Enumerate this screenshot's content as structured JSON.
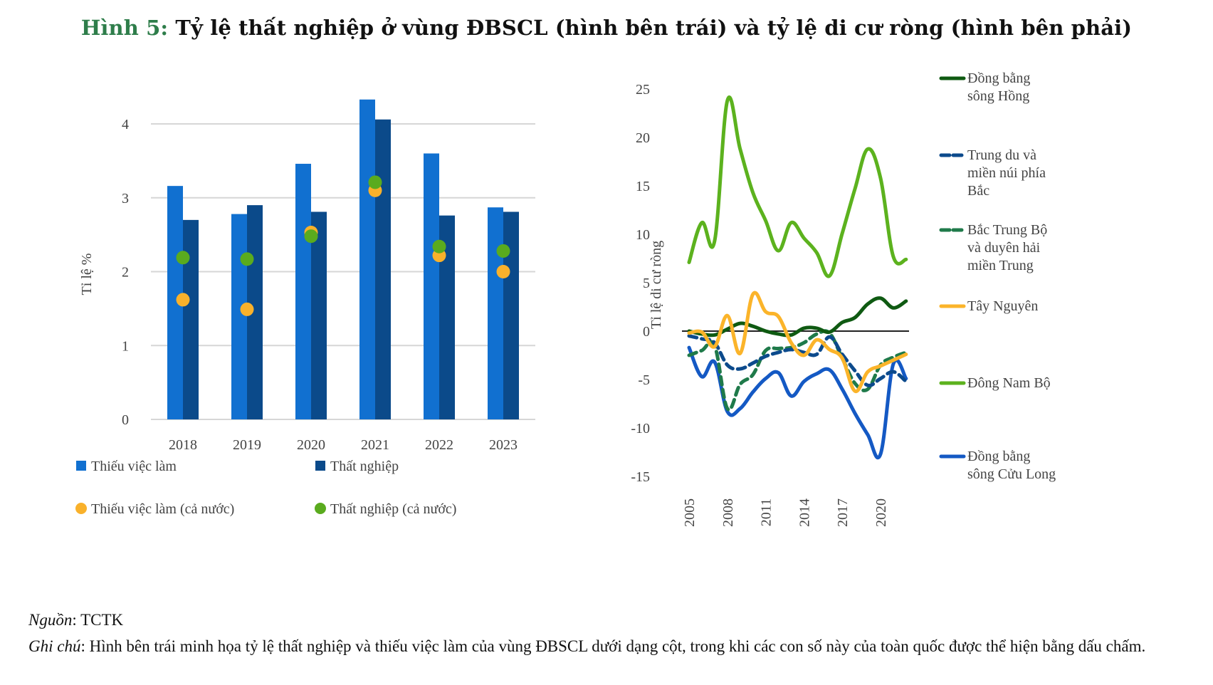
{
  "title": {
    "figure_label": "Hình 5:",
    "text": " Tỷ lệ thất nghiệp ở vùng ĐBSCL (hình bên trái) và tỷ lệ di cư ròng (hình bên phải)"
  },
  "colors": {
    "title_label": "#2e7d4a",
    "thieu_viec_lam": "#1170d0",
    "that_nghiep": "#0b4a8a",
    "thieu_viec_lam_ca_nuoc": "#f9b12b",
    "that_nghiep_ca_nuoc": "#5aab1e",
    "dbsh": "#0f5a12",
    "trung_du": "#0c4a8c",
    "bac_trung_bo": "#1f7a4a",
    "tay_nguyen": "#fbb42a",
    "dong_nam_bo": "#5cb21e",
    "dbscl": "#1459c4"
  },
  "chart_data": [
    {
      "type": "bar",
      "title": "",
      "xlabel": "",
      "ylabel": "Tỉ lệ %",
      "ylim": [
        0,
        4.4
      ],
      "yticks": [
        0,
        1,
        2,
        3,
        4
      ],
      "grid": true,
      "legend_position": "bottom",
      "categories": [
        "2018",
        "2019",
        "2020",
        "2021",
        "2022",
        "2023"
      ],
      "series": [
        {
          "name": "Thiếu việc làm",
          "kind": "bar",
          "color": "#1170d0",
          "values": [
            3.16,
            2.78,
            3.46,
            4.33,
            3.6,
            2.87
          ]
        },
        {
          "name": "Thất nghiệp",
          "kind": "bar",
          "color": "#0b4a8a",
          "values": [
            2.7,
            2.9,
            2.81,
            4.06,
            2.76,
            2.81
          ]
        },
        {
          "name": "Thiếu việc làm (cả nước)",
          "kind": "dot",
          "color": "#f9b12b",
          "values": [
            1.62,
            1.49,
            2.53,
            3.1,
            2.22,
            2.0
          ]
        },
        {
          "name": "Thất nghiệp (cả nước)",
          "kind": "dot",
          "color": "#5aab1e",
          "values": [
            2.19,
            2.17,
            2.48,
            3.21,
            2.34,
            2.28
          ]
        }
      ]
    },
    {
      "type": "line",
      "title": "",
      "xlabel": "",
      "ylabel": "Tỉ lệ di cư ròng",
      "ylim": [
        -15,
        25
      ],
      "yticks": [
        -15,
        -10,
        -5,
        0,
        5,
        10,
        15,
        20,
        25
      ],
      "xticks": [
        "2005",
        "2008",
        "2011",
        "2014",
        "2017",
        "2020"
      ],
      "x": [
        2005,
        2006,
        2007,
        2008,
        2009,
        2010,
        2011,
        2012,
        2013,
        2014,
        2015,
        2016,
        2017,
        2018,
        2019,
        2020,
        2021,
        2022
      ],
      "grid": false,
      "zero_line": true,
      "legend_position": "right",
      "series": [
        {
          "name": "Đồng bằng sông Hồng",
          "legend_lines": [
            "Đồng bằng",
            "sông Hồng"
          ],
          "color": "#0f5a12",
          "dashed": false,
          "values": [
            0,
            -0.3,
            -0.4,
            0.2,
            0.8,
            0.5,
            0,
            -0.3,
            -0.4,
            0.3,
            0.3,
            -0.1,
            0.9,
            1.4,
            2.8,
            3.4,
            2.4,
            3.1
          ]
        },
        {
          "name": "Trung du và miền núi phía Bắc",
          "legend_lines": [
            "Trung du và",
            "miền núi phía",
            "Bắc"
          ],
          "color": "#0c4a8c",
          "dashed": true,
          "values": [
            -0.5,
            -0.8,
            -1.2,
            -3.5,
            -3.9,
            -3.3,
            -2.6,
            -2.2,
            -1.9,
            -2.2,
            -2.4,
            -0.6,
            -2.4,
            -4.1,
            -5.6,
            -4.9,
            -4.2,
            -5.2
          ]
        },
        {
          "name": "Bắc Trung Bộ và duyên hải miền Trung",
          "legend_lines": [
            "Bắc Trung Bộ",
            "và duyên hải",
            "miền Trung"
          ],
          "color": "#1f7a4a",
          "dashed": true,
          "values": [
            -2.5,
            -2.0,
            -1.5,
            -8.0,
            -5.5,
            -4.5,
            -2.0,
            -1.8,
            -1.7,
            -1.2,
            -0.3,
            -0.2,
            -2.8,
            -5.4,
            -6.0,
            -3.5,
            -2.7,
            -2.2
          ]
        },
        {
          "name": "Tây Nguyên",
          "legend_lines": [
            "Tây Nguyên"
          ],
          "color": "#fbb42a",
          "dashed": false,
          "values": [
            -0.2,
            -0.1,
            -1.6,
            1.6,
            -2.3,
            3.8,
            2.0,
            1.5,
            -1.2,
            -2.5,
            -0.9,
            -1.9,
            -2.8,
            -6.2,
            -4.2,
            -3.6,
            -3.0,
            -2.4
          ]
        },
        {
          "name": "Đông Nam Bộ",
          "legend_lines": [
            "Đông Nam Bộ"
          ],
          "color": "#5cb21e",
          "dashed": false,
          "values": [
            7.1,
            11.2,
            9.3,
            23.8,
            18.8,
            14.3,
            11.4,
            8.3,
            11.2,
            9.6,
            8.1,
            5.7,
            10.1,
            14.7,
            18.8,
            15.8,
            7.7,
            7.4
          ]
        },
        {
          "name": "Đồng bằng sông Cửu Long",
          "legend_lines": [
            "Đồng bằng",
            "sông Cửu Long"
          ],
          "color": "#1459c4",
          "dashed": false,
          "values": [
            -1.7,
            -4.7,
            -3.2,
            -8.3,
            -8.0,
            -6.3,
            -4.9,
            -4.3,
            -6.7,
            -5.2,
            -4.4,
            -4.0,
            -6.0,
            -8.5,
            -10.7,
            -12.7,
            -3.4,
            -4.9
          ]
        }
      ]
    }
  ],
  "notes": {
    "source_label": "Nguồn",
    "source_text": ": TCTK",
    "note_label": "Ghi chú",
    "note_text": ": Hình bên trái minh họa tỷ lệ thất nghiệp và thiếu việc làm của vùng ĐBSCL dưới dạng cột, trong khi các con số này của toàn quốc được thể hiện bằng dấu chấm."
  }
}
